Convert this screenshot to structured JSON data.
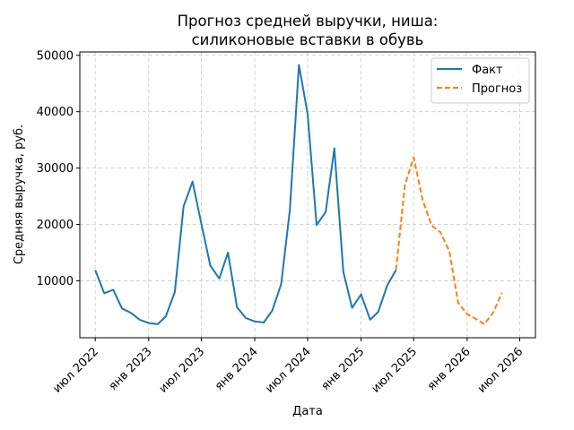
{
  "chart_data": {
    "type": "line",
    "title_lines": [
      "Прогноз средней выручки, ниша:",
      "силиконовые вставки в обувь"
    ],
    "xlabel": "Дата",
    "ylabel": "Средняя выручка, руб.",
    "ylim": [
      -100,
      50600
    ],
    "xlim": [
      "2022-05-09",
      "2026-08-24"
    ],
    "yticks": [
      10000,
      20000,
      30000,
      40000,
      50000
    ],
    "xticks": [
      {
        "date": "2022-07-01",
        "label": "июл 2022"
      },
      {
        "date": "2023-01-01",
        "label": "янв 2023"
      },
      {
        "date": "2023-07-01",
        "label": "июл 2023"
      },
      {
        "date": "2024-01-01",
        "label": "янв 2024"
      },
      {
        "date": "2024-07-01",
        "label": "июл 2024"
      },
      {
        "date": "2025-01-01",
        "label": "янв 2025"
      },
      {
        "date": "2025-07-01",
        "label": "июл 2025"
      },
      {
        "date": "2026-01-01",
        "label": "янв 2026"
      },
      {
        "date": "2026-07-01",
        "label": "июл 2026"
      }
    ],
    "grid": true,
    "legend_position": "top-right",
    "series": [
      {
        "name": "Факт",
        "color": "#1f77b4",
        "style": "solid",
        "points": [
          [
            "2022-07-01",
            11900
          ],
          [
            "2022-08-01",
            7800
          ],
          [
            "2022-09-01",
            8400
          ],
          [
            "2022-10-01",
            5100
          ],
          [
            "2022-11-01",
            4300
          ],
          [
            "2022-12-01",
            3100
          ],
          [
            "2023-01-01",
            2500
          ],
          [
            "2023-02-01",
            2300
          ],
          [
            "2023-03-01",
            3700
          ],
          [
            "2023-04-01",
            8000
          ],
          [
            "2023-05-01",
            23200
          ],
          [
            "2023-06-01",
            27600
          ],
          [
            "2023-07-01",
            20200
          ],
          [
            "2023-08-01",
            12700
          ],
          [
            "2023-09-01",
            10400
          ],
          [
            "2023-10-01",
            15000
          ],
          [
            "2023-11-01",
            5300
          ],
          [
            "2023-12-01",
            3400
          ],
          [
            "2024-01-01",
            2800
          ],
          [
            "2024-02-01",
            2600
          ],
          [
            "2024-03-01",
            4700
          ],
          [
            "2024-04-01",
            9400
          ],
          [
            "2024-05-01",
            22600
          ],
          [
            "2024-06-01",
            48300
          ],
          [
            "2024-07-01",
            39600
          ],
          [
            "2024-08-01",
            19900
          ],
          [
            "2024-09-01",
            22200
          ],
          [
            "2024-10-01",
            33500
          ],
          [
            "2024-11-01",
            11600
          ],
          [
            "2024-12-01",
            5200
          ],
          [
            "2025-01-01",
            7600
          ],
          [
            "2025-02-01",
            3100
          ],
          [
            "2025-03-01",
            4500
          ],
          [
            "2025-04-01",
            9200
          ],
          [
            "2025-05-01",
            11900
          ]
        ]
      },
      {
        "name": "Прогноз",
        "color": "#ff7f0e",
        "style": "dashed",
        "points": [
          [
            "2025-05-01",
            11900
          ],
          [
            "2025-06-01",
            27000
          ],
          [
            "2025-07-01",
            31900
          ],
          [
            "2025-08-01",
            24300
          ],
          [
            "2025-09-01",
            19800
          ],
          [
            "2025-10-01",
            18600
          ],
          [
            "2025-11-01",
            15200
          ],
          [
            "2025-12-01",
            6100
          ],
          [
            "2026-01-01",
            4100
          ],
          [
            "2026-02-01",
            3200
          ],
          [
            "2026-03-01",
            2300
          ],
          [
            "2026-04-01",
            4400
          ],
          [
            "2026-05-01",
            7900
          ]
        ]
      }
    ]
  }
}
